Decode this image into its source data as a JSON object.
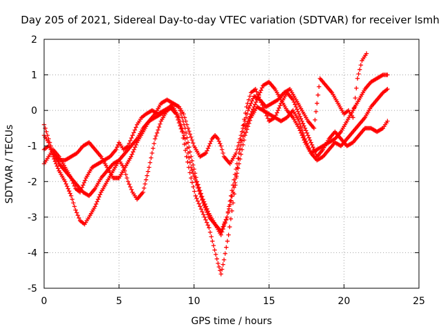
{
  "chart_data": {
    "type": "scatter",
    "title": "Day 205 of 2021, Sidereal Day-to-day VTEC variation (SDTVAR) for receiver lsmh",
    "xlabel": "GPS time / hours",
    "ylabel": "SDTVAR / TECUs",
    "xlim": [
      0,
      25
    ],
    "ylim": [
      -5,
      2
    ],
    "x_ticks": [
      "0",
      "5",
      "10",
      "15",
      "20",
      "25"
    ],
    "y_ticks": [
      "-5",
      "-4",
      "-3",
      "-2",
      "-1",
      "0",
      "1",
      "2"
    ],
    "grid": true,
    "marker": "plus",
    "color": "#ff0000",
    "series": [
      {
        "x": [
          0.0,
          0.3,
          0.6,
          1.0,
          1.4,
          1.8,
          2.1,
          2.4,
          2.6,
          2.8,
          3.2,
          3.6,
          4.0,
          4.4,
          4.8,
          5.0,
          5.3,
          5.6,
          5.9,
          6.2,
          6.5,
          6.8,
          7.2,
          7.6,
          8.0,
          8.4,
          8.8,
          9.2,
          9.5,
          9.8,
          10.1,
          10.4,
          10.7,
          11.0,
          11.3,
          11.6,
          11.8,
          12.0,
          12.3,
          12.6,
          12.9,
          13.2,
          13.5,
          13.8,
          14.1,
          14.4,
          14.7,
          15.0,
          15.4,
          15.8,
          16.2,
          16.6,
          17.0,
          17.4,
          17.8,
          18.2,
          18.6,
          19.0,
          19.4,
          19.8,
          20.2,
          20.6,
          21.0,
          21.4,
          21.8,
          22.2,
          22.6,
          22.9
        ],
        "y": [
          -1.5,
          -1.3,
          -1.1,
          -1.3,
          -1.6,
          -1.9,
          -2.2,
          -2.3,
          -2.1,
          -1.9,
          -1.6,
          -1.5,
          -1.4,
          -1.3,
          -1.1,
          -0.9,
          -1.1,
          -1.0,
          -0.7,
          -0.4,
          -0.2,
          -0.1,
          0.0,
          -0.1,
          0.0,
          0.1,
          -0.1,
          -0.6,
          -1.3,
          -1.9,
          -2.4,
          -2.7,
          -3.0,
          -3.3,
          -3.8,
          -4.3,
          -4.6,
          -4.2,
          -3.5,
          -2.6,
          -1.6,
          -0.6,
          0.1,
          0.5,
          0.6,
          0.3,
          0.0,
          -0.3,
          -0.2,
          0.2,
          0.5,
          0.3,
          -0.1,
          -0.5,
          -0.9,
          -1.3,
          -1.1,
          -0.8,
          -0.6,
          -0.8,
          -1.0,
          -0.9,
          -0.7,
          -0.5,
          -0.5,
          -0.6,
          -0.5,
          -0.3
        ]
      },
      {
        "x": [
          0.0,
          0.3,
          0.6,
          1.0,
          1.4,
          1.8,
          2.2,
          2.6,
          3.0,
          3.4,
          3.8,
          4.2,
          4.6,
          5.0,
          5.4,
          5.8,
          6.2,
          6.6,
          7.0,
          7.4,
          7.8,
          8.2,
          8.6,
          9.0,
          9.4,
          9.8,
          10.2,
          10.6,
          11.0,
          11.4,
          11.8,
          12.2,
          12.6,
          13.0,
          13.4,
          13.8,
          14.2,
          14.6,
          15.0,
          15.4,
          15.8,
          16.2,
          16.6,
          17.0,
          17.4,
          17.8,
          18.2,
          18.6,
          19.0,
          19.4,
          19.8,
          20.2,
          20.6,
          21.0,
          21.4,
          21.8,
          22.2,
          22.6,
          22.9
        ],
        "y": [
          -1.1,
          -1.0,
          -1.2,
          -1.5,
          -1.7,
          -1.9,
          -2.1,
          -2.3,
          -2.4,
          -2.2,
          -1.9,
          -1.7,
          -1.5,
          -1.4,
          -1.2,
          -1.0,
          -0.8,
          -0.5,
          -0.3,
          -0.2,
          -0.1,
          0.0,
          0.1,
          -0.2,
          -0.8,
          -1.6,
          -2.1,
          -2.6,
          -3.0,
          -3.2,
          -3.4,
          -3.0,
          -2.3,
          -1.5,
          -0.7,
          -0.2,
          0.1,
          0.0,
          -0.1,
          -0.2,
          -0.3,
          -0.2,
          0.0,
          -0.3,
          -0.8,
          -1.2,
          -1.4,
          -1.3,
          -1.1,
          -0.9,
          -1.0,
          -0.8,
          -0.6,
          -0.4,
          -0.2,
          0.1,
          0.3,
          0.5,
          0.6
        ]
      },
      {
        "x": [
          0.0,
          0.3,
          0.6,
          1.0,
          1.4,
          1.8,
          2.1,
          2.4,
          2.7,
          3.0,
          3.4,
          3.8,
          4.2,
          4.6,
          5.0,
          5.3,
          5.6,
          5.9,
          6.2,
          6.6,
          7.0,
          7.4,
          7.8,
          8.2,
          8.6,
          9.0,
          9.4,
          9.8,
          10.2,
          10.6,
          11.0,
          11.4,
          11.8,
          12.2,
          12.6,
          13.0,
          13.4,
          13.8,
          14.2,
          14.6,
          15.0,
          15.4,
          15.8,
          16.2,
          16.6,
          17.0,
          17.4,
          17.8,
          18.2,
          18.6,
          19.0,
          19.4,
          19.8,
          20.2,
          20.6,
          21.0,
          21.4,
          21.8,
          22.2,
          22.6,
          22.9
        ],
        "y": [
          -0.7,
          -0.9,
          -1.3,
          -1.7,
          -2.0,
          -2.4,
          -2.8,
          -3.1,
          -3.2,
          -3.0,
          -2.7,
          -2.3,
          -2.0,
          -1.7,
          -1.4,
          -1.6,
          -2.0,
          -2.3,
          -2.5,
          -2.3,
          -1.6,
          -0.8,
          -0.3,
          0.0,
          0.2,
          0.1,
          -0.5,
          -1.3,
          -2.0,
          -2.5,
          -2.9,
          -3.2,
          -3.5,
          -3.0,
          -2.1,
          -1.2,
          -0.5,
          -0.1,
          0.3,
          0.7,
          0.8,
          0.6,
          0.3,
          0.0,
          -0.2,
          -0.5,
          -0.9,
          -1.2,
          -1.1,
          -1.0,
          -0.9,
          -0.8,
          -0.6,
          -0.3,
          0.0,
          0.3,
          0.6,
          0.8,
          0.9,
          1.0,
          1.0
        ]
      },
      {
        "x": [
          0.0,
          0.3,
          0.6,
          1.0,
          1.4,
          1.8,
          2.2,
          2.6,
          3.0,
          3.4,
          3.8,
          4.2,
          4.6,
          5.0,
          5.4,
          5.8,
          6.2,
          6.6,
          7.0,
          7.4,
          7.8,
          8.2,
          8.6,
          9.0,
          9.3,
          9.6,
          10.0,
          10.4,
          10.8,
          11.0,
          11.2,
          11.4,
          11.6,
          11.8,
          12.0,
          12.4,
          12.8,
          13.2,
          13.6,
          14.0,
          14.4,
          14.8,
          15.2,
          15.6,
          16.0,
          16.4,
          16.8,
          17.2,
          17.6,
          18.0,
          18.4,
          18.8,
          19.2,
          19.6,
          20.0,
          20.3,
          20.6,
          20.9,
          21.2,
          21.5
        ],
        "y": [
          -0.4,
          -0.8,
          -1.2,
          -1.4,
          -1.4,
          -1.3,
          -1.2,
          -1.0,
          -0.9,
          -1.1,
          -1.3,
          -1.6,
          -1.9,
          -1.9,
          -1.6,
          -1.3,
          -0.9,
          -0.6,
          -0.3,
          -0.1,
          0.2,
          0.3,
          0.2,
          0.1,
          -0.1,
          -0.5,
          -1.0,
          -1.3,
          -1.2,
          -1.0,
          -0.8,
          -0.7,
          -0.8,
          -1.0,
          -1.3,
          -1.5,
          -1.2,
          -0.6,
          0.0,
          0.4,
          0.3,
          0.1,
          0.2,
          0.3,
          0.5,
          0.6,
          0.3,
          0.0,
          -0.3,
          -0.5,
          0.9,
          0.7,
          0.5,
          0.2,
          -0.1,
          0.0,
          -0.2,
          0.9,
          1.4,
          1.6
        ]
      }
    ]
  }
}
